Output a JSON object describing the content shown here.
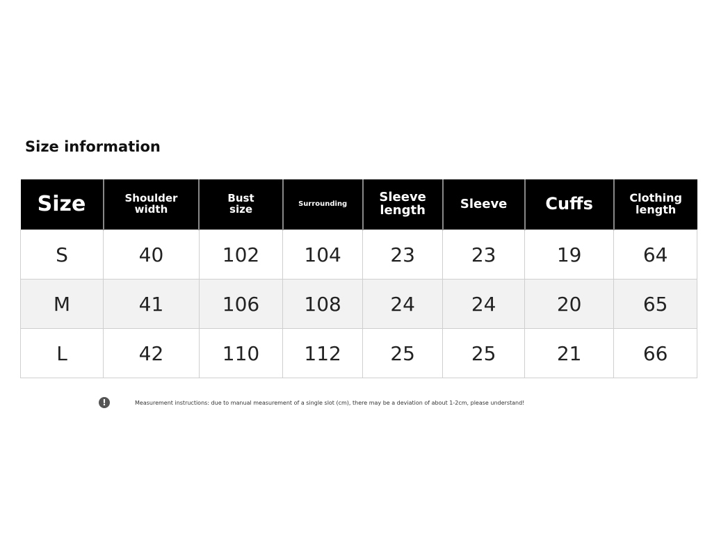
{
  "title": "Size information",
  "table": {
    "headers": [
      "Size",
      "Shoulder width",
      "Bust size",
      "Surrounding",
      "Sleeve length",
      "Sleeve",
      "Cuffs",
      "Clothing length"
    ],
    "rows": [
      [
        "S",
        "40",
        "102",
        "104",
        "23",
        "23",
        "19",
        "64"
      ],
      [
        "M",
        "41",
        "106",
        "108",
        "24",
        "24",
        "20",
        "65"
      ],
      [
        "L",
        "42",
        "110",
        "112",
        "25",
        "25",
        "21",
        "66"
      ]
    ]
  },
  "note": {
    "icon": "exclamation-circle-icon",
    "text": "Measurement instructions: due to manual measurement of a single slot (cm), there may be a deviation of about 1-2cm, please understand!"
  }
}
